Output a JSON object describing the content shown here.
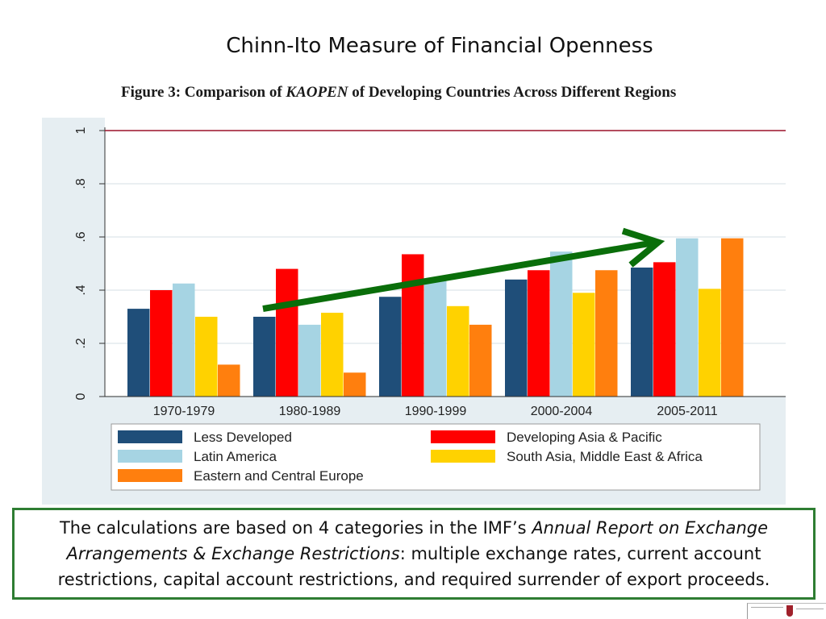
{
  "slide_title": "Chinn-Ito Measure of Financial Openness",
  "figure_title": {
    "prefix": "Figure 3: Comparison of ",
    "italic": "KAOPEN",
    "suffix": " of Developing Countries Across Different Regions"
  },
  "caption": {
    "part1": "The calculations are based on 4 categories in the IMF’s ",
    "italic": "Annual Report on Exchange Arrangements & Exchange Restrictions",
    "part2": ": multiple exchange rates, current account restrictions, capital account restrictions, and required surrender of export proceeds."
  },
  "chart_data": {
    "type": "bar",
    "title": "",
    "xlabel": "",
    "ylabel": "",
    "ylim": [
      0,
      1
    ],
    "yticks": [
      0,
      0.2,
      0.4,
      0.6,
      0.8,
      1
    ],
    "ytick_labels": [
      "0",
      ".2",
      ".4",
      ".6",
      ".8",
      "1"
    ],
    "categories": [
      "1970-1979",
      "1980-1989",
      "1990-1999",
      "2000-2004",
      "2005-2011"
    ],
    "series": [
      {
        "name": "Less Developed",
        "color": "#1f4e79",
        "values": [
          0.33,
          0.3,
          0.375,
          0.44,
          0.485
        ]
      },
      {
        "name": "Developing Asia & Pacific",
        "color": "#ff0000",
        "values": [
          0.4,
          0.48,
          0.535,
          0.475,
          0.505
        ]
      },
      {
        "name": "Latin America",
        "color": "#a6d4e3",
        "values": [
          0.425,
          0.27,
          0.44,
          0.545,
          0.595
        ]
      },
      {
        "name": "South Asia, Middle East & Africa",
        "color": "#ffd200",
        "values": [
          0.3,
          0.315,
          0.34,
          0.39,
          0.405
        ]
      },
      {
        "name": "Eastern and Central Europe",
        "color": "#ff7f0e",
        "values": [
          0.12,
          0.09,
          0.27,
          0.475,
          0.595
        ]
      }
    ],
    "reference_line": {
      "y": 1,
      "color": "#a0142b"
    },
    "annotation_arrow": {
      "from": {
        "category": "1980-1989",
        "y": 0.33
      },
      "to": {
        "category": "2005-2011",
        "y": 0.58
      },
      "color": "#0a6e0a"
    },
    "grid": true,
    "legend_position": "bottom"
  }
}
